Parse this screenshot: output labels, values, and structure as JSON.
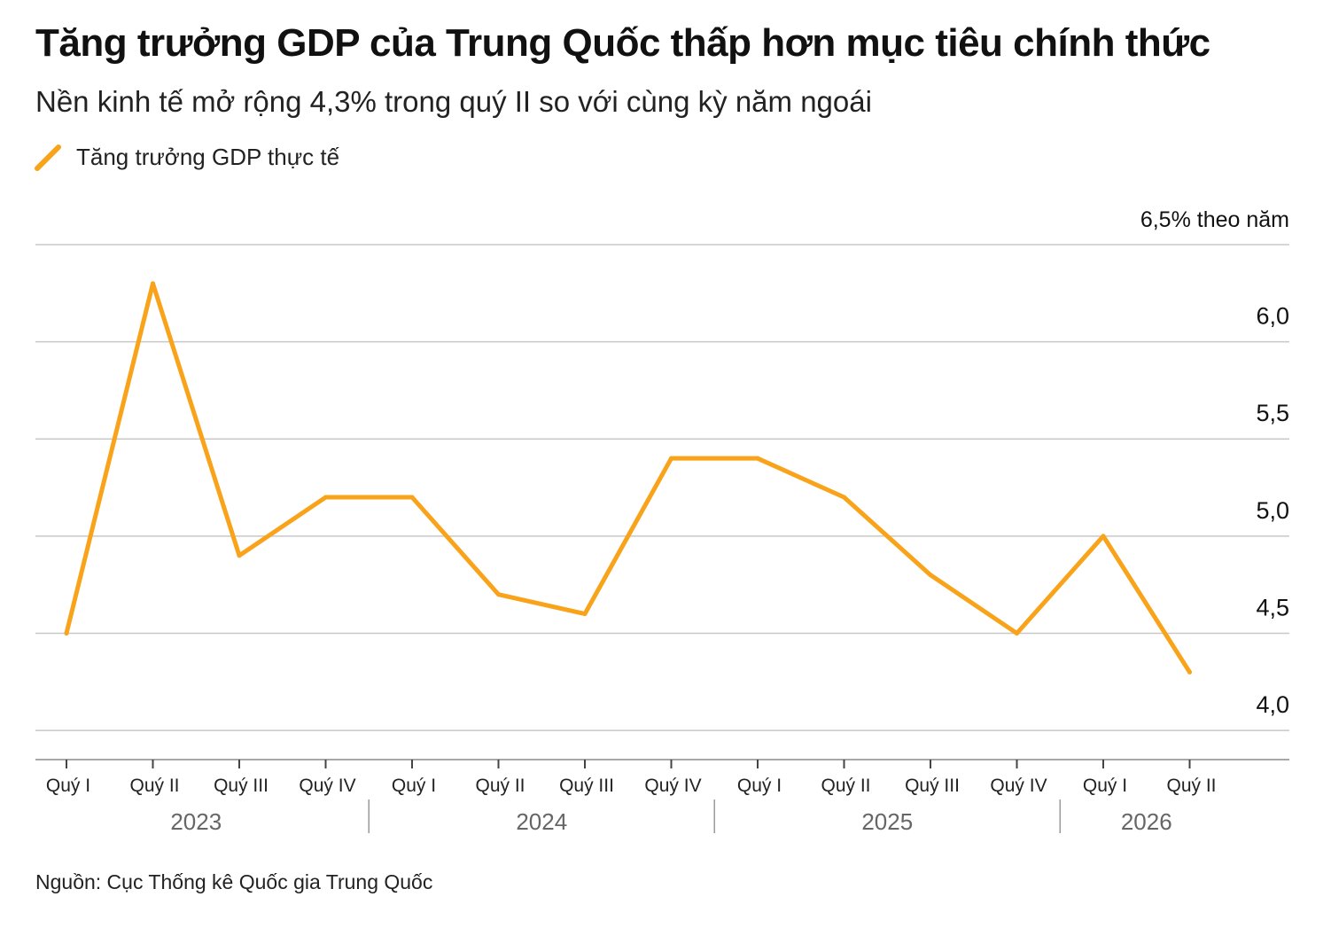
{
  "title": "Tăng trưởng GDP của Trung Quốc thấp hơn mục tiêu chính thức",
  "subtitle": "Nền kinh tế mở rộng 4,3% trong quý II so với cùng kỳ năm ngoái",
  "legend_label": "Tăng trưởng GDP thực tế",
  "source": "Nguồn: Cục Thống kê Quốc gia Trung Quốc",
  "colors": {
    "series": "#F9A31B",
    "grid": "#c8c8c8",
    "axis": "#8a8a8a",
    "year_text": "#666666"
  },
  "chart_data": {
    "type": "line",
    "title": "Tăng trưởng GDP của Trung Quốc thấp hơn mục tiêu chính thức",
    "subtitle": "Nền kinh tế mở rộng 4,3% trong quý II so với cùng kỳ năm ngoái",
    "xlabel": "",
    "ylabel": "",
    "ylim": [
      3.85,
      6.5
    ],
    "grid": true,
    "legend_position": "top-left",
    "y_ticks": [
      {
        "value": 6.5,
        "label": "6,5% theo năm"
      },
      {
        "value": 6.0,
        "label": "6,0"
      },
      {
        "value": 5.5,
        "label": "5,5"
      },
      {
        "value": 5.0,
        "label": "5,0"
      },
      {
        "value": 4.5,
        "label": "4,5"
      },
      {
        "value": 4.0,
        "label": "4,0"
      }
    ],
    "categories": [
      "Quý I",
      "Quý II",
      "Quý III",
      "Quý IV",
      "Quý I",
      "Quý II",
      "Quý III",
      "Quý IV",
      "Quý I",
      "Quý II",
      "Quý III",
      "Quý IV",
      "Quý I",
      "Quý II"
    ],
    "years": [
      {
        "label": "2023",
        "quarters": 4
      },
      {
        "label": "2024",
        "quarters": 4
      },
      {
        "label": "2025",
        "quarters": 4
      },
      {
        "label": "2026",
        "quarters": 2
      }
    ],
    "series": [
      {
        "name": "Tăng trưởng GDP thực tế",
        "values": [
          4.5,
          6.3,
          4.9,
          5.2,
          5.2,
          4.7,
          4.6,
          5.4,
          5.4,
          5.2,
          4.8,
          4.5,
          5.0,
          4.3
        ]
      }
    ]
  }
}
